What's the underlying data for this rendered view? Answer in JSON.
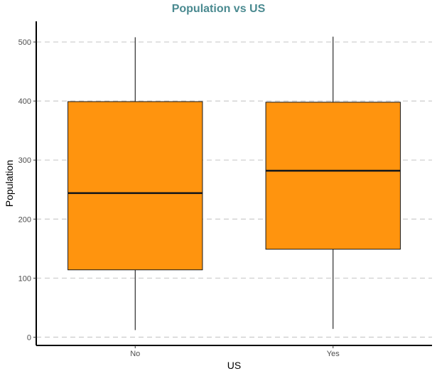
{
  "chart_data": {
    "type": "box",
    "title": "Population vs US",
    "xlabel": "US",
    "ylabel": "Population",
    "categories": [
      "No",
      "Yes"
    ],
    "boxes": [
      {
        "category": "No",
        "min": 12,
        "q1": 114,
        "median": 244,
        "q3": 399,
        "max": 508
      },
      {
        "category": "Yes",
        "min": 14,
        "q1": 149,
        "median": 282,
        "q3": 398,
        "max": 509
      }
    ],
    "ylim": [
      -14,
      535
    ],
    "yticks": [
      0,
      100,
      200,
      300,
      400,
      500
    ],
    "grid": true,
    "colors": {
      "box_fill": "#FF940E",
      "title": "#4A8A90",
      "grid": "#cccccc"
    }
  }
}
